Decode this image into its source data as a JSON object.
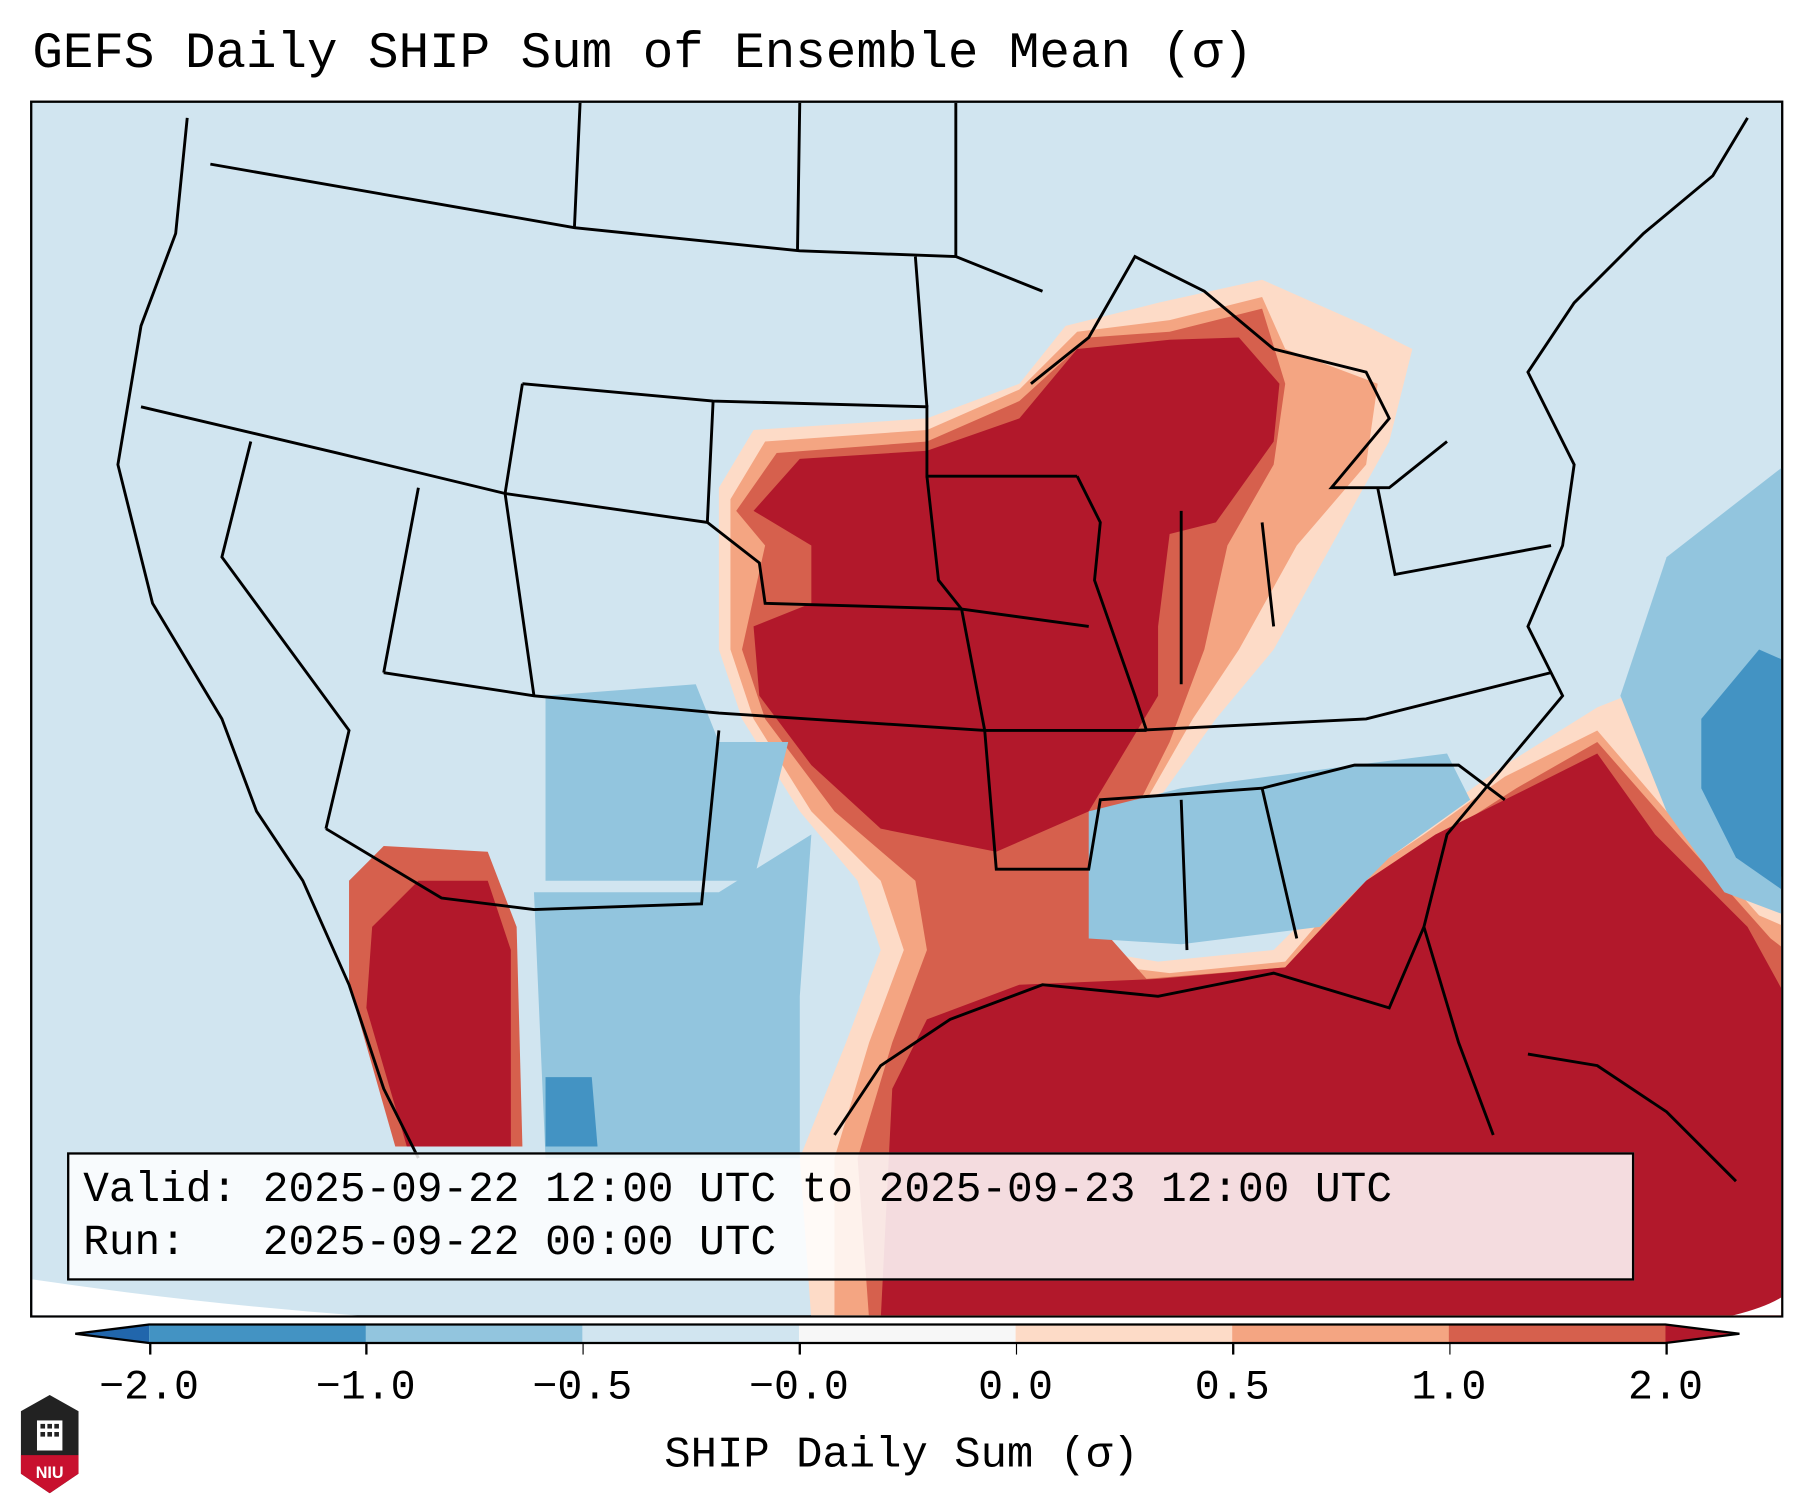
{
  "title": "GEFS Daily SHIP Sum of Ensemble Mean (σ)",
  "info": {
    "valid_line": "Valid: 2025-09-22 12:00 UTC to 2025-09-23 12:00 UTC",
    "run_line": "Run:   2025-09-22 00:00 UTC"
  },
  "colorbar": {
    "label": "SHIP Daily Sum (σ)",
    "ticks": [
      "−2.0",
      "−1.0",
      "−0.5",
      "−0.0",
      "0.0",
      "0.5",
      "1.0",
      "2.0"
    ],
    "colors": [
      "#2166ac",
      "#4393c3",
      "#92c5de",
      "#d1e5f0",
      "#f7f7f7",
      "#fddbc7",
      "#f4a582",
      "#d6604d",
      "#b2182b"
    ]
  },
  "logo": {
    "text": "NIU"
  }
}
